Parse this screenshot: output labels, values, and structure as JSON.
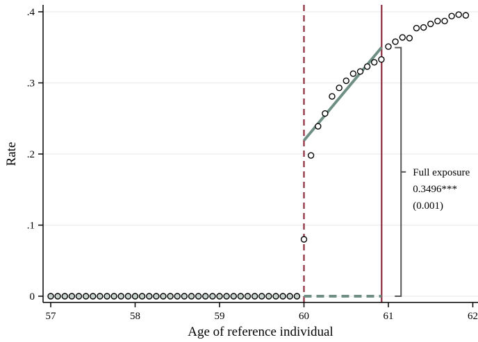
{
  "chart_data": {
    "type": "scatter",
    "xlabel": "Age of reference individual",
    "ylabel": "Rate",
    "xlim": [
      57,
      62
    ],
    "ylim": [
      0,
      0.4
    ],
    "x_ticks": [
      57,
      58,
      59,
      60,
      61,
      62
    ],
    "x_tick_labels": [
      "57",
      "58",
      "59",
      "60",
      "61",
      "62"
    ],
    "y_ticks": [
      0,
      0.1,
      0.2,
      0.3,
      0.4
    ],
    "y_tick_labels": [
      "0",
      ".1",
      ".2",
      ".3",
      ".4"
    ],
    "grid": true,
    "series": [
      {
        "kind": "points",
        "x": [
          57.0,
          57.083,
          57.167,
          57.25,
          57.333,
          57.417,
          57.5,
          57.583,
          57.667,
          57.75,
          57.833,
          57.917,
          58.0,
          58.083,
          58.167,
          58.25,
          58.333,
          58.417,
          58.5,
          58.583,
          58.667,
          58.75,
          58.833,
          58.917,
          59.0,
          59.083,
          59.167,
          59.25,
          59.333,
          59.417,
          59.5,
          59.583,
          59.667,
          59.75,
          59.833,
          59.917,
          60.0,
          60.083,
          60.167,
          60.25,
          60.333,
          60.417,
          60.5,
          60.583,
          60.667,
          60.75,
          60.833,
          60.917,
          61.0,
          61.083,
          61.167,
          61.25,
          61.333,
          61.417,
          61.5,
          61.583,
          61.667,
          61.75,
          61.833,
          61.917
        ],
        "y": [
          0,
          0,
          0,
          0,
          0,
          0,
          0,
          0,
          0,
          0,
          0,
          0,
          0,
          0,
          0,
          0,
          0,
          0,
          0,
          0,
          0,
          0,
          0,
          0,
          0,
          0,
          0,
          0,
          0,
          0,
          0,
          0,
          0,
          0,
          0,
          0,
          0.08,
          0.198,
          0.239,
          0.257,
          0.281,
          0.293,
          0.303,
          0.313,
          0.316,
          0.323,
          0.329,
          0.333,
          0.351,
          0.358,
          0.364,
          0.363,
          0.377,
          0.378,
          0.383,
          0.387,
          0.387,
          0.394,
          0.396,
          0.395
        ]
      },
      {
        "kind": "fit-line",
        "style": "solid",
        "color": "#6f8f84",
        "x": [
          60.0,
          60.92
        ],
        "y": [
          0.219,
          0.35
        ]
      },
      {
        "kind": "fit-line",
        "style": "dashed",
        "color": "#6f8f84",
        "x": [
          60.0,
          60.92
        ],
        "y": [
          0,
          0
        ]
      }
    ],
    "vlines": [
      {
        "x": 60.0,
        "style": "dashed",
        "color": "#8b2a3a"
      },
      {
        "x": 60.92,
        "style": "solid",
        "color": "#8b2a3a"
      }
    ],
    "bracket": {
      "x": 61.15,
      "y_bottom": 0,
      "y_top": 0.3496,
      "color": "#555555"
    },
    "annotation": {
      "x": 61.29,
      "y": 0.16,
      "lines": [
        "Full exposure",
        "0.3496***",
        "(0.001)"
      ]
    }
  }
}
